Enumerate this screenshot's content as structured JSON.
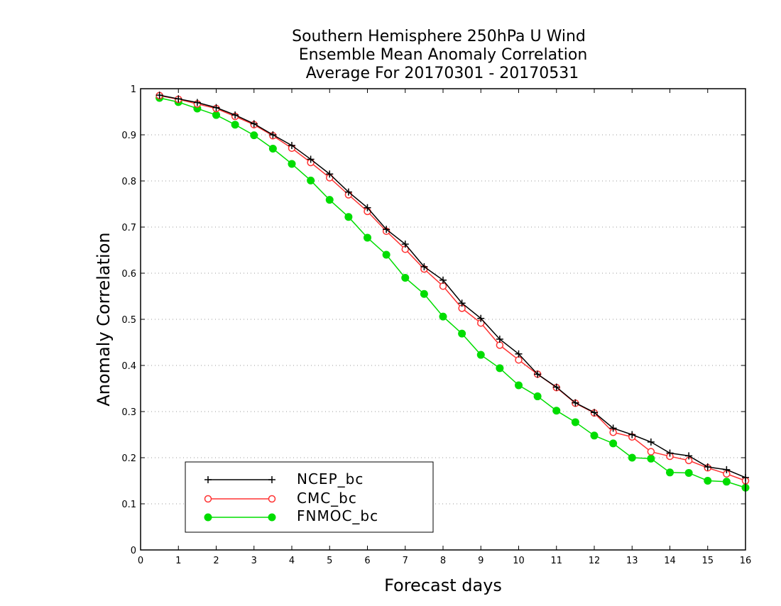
{
  "chart_data": {
    "type": "line",
    "title_lines": [
      "Southern Hemisphere 250hPa U Wind",
      "Ensemble Mean Anomaly Correlation",
      "Average For 20170301 - 20170531"
    ],
    "xlabel": "Forecast days",
    "ylabel": "Anomaly Correlation",
    "xlim": [
      0,
      16
    ],
    "ylim": [
      0,
      1
    ],
    "x_ticks": [
      "0",
      "1",
      "2",
      "3",
      "4",
      "5",
      "6",
      "7",
      "8",
      "9",
      "10",
      "11",
      "12",
      "13",
      "14",
      "15",
      "16"
    ],
    "y_ticks": [
      "0",
      "0.1",
      "0.2",
      "0.3",
      "0.4",
      "0.5",
      "0.6",
      "0.7",
      "0.8",
      "0.9",
      "1"
    ],
    "grid": "horizontal dotted",
    "legend_position": "bottom-left",
    "x": [
      0.5,
      1,
      1.5,
      2,
      2.5,
      3,
      3.5,
      4,
      4.5,
      5,
      5.5,
      6,
      6.5,
      7,
      7.5,
      8,
      8.5,
      9,
      9.5,
      10,
      10.5,
      11,
      11.5,
      12,
      12.5,
      13,
      13.5,
      14,
      14.5,
      15,
      15.5,
      16
    ],
    "series": [
      {
        "name": "NCEP_bc",
        "color": "#000000",
        "marker": "plus",
        "values": [
          0.986,
          0.978,
          0.97,
          0.959,
          0.943,
          0.924,
          0.9,
          0.877,
          0.847,
          0.815,
          0.776,
          0.742,
          0.695,
          0.663,
          0.614,
          0.585,
          0.535,
          0.502,
          0.457,
          0.425,
          0.381,
          0.353,
          0.319,
          0.298,
          0.264,
          0.25,
          0.234,
          0.21,
          0.204,
          0.18,
          0.174,
          0.157
        ]
      },
      {
        "name": "CMC_bc",
        "color": "#ff3333",
        "marker": "open-circle",
        "values": [
          0.985,
          0.977,
          0.967,
          0.957,
          0.94,
          0.922,
          0.898,
          0.871,
          0.84,
          0.807,
          0.77,
          0.734,
          0.691,
          0.652,
          0.609,
          0.572,
          0.524,
          0.492,
          0.444,
          0.412,
          0.381,
          0.352,
          0.318,
          0.297,
          0.255,
          0.245,
          0.213,
          0.203,
          0.194,
          0.178,
          0.165,
          0.15
        ]
      },
      {
        "name": "FNMOC_bc",
        "color": "#00dd00",
        "marker": "filled-circle",
        "values": [
          0.98,
          0.971,
          0.957,
          0.943,
          0.922,
          0.899,
          0.87,
          0.837,
          0.801,
          0.759,
          0.722,
          0.677,
          0.64,
          0.59,
          0.555,
          0.506,
          0.469,
          0.423,
          0.394,
          0.357,
          0.333,
          0.302,
          0.277,
          0.248,
          0.231,
          0.2,
          0.198,
          0.168,
          0.167,
          0.15,
          0.148,
          0.135
        ]
      }
    ]
  }
}
